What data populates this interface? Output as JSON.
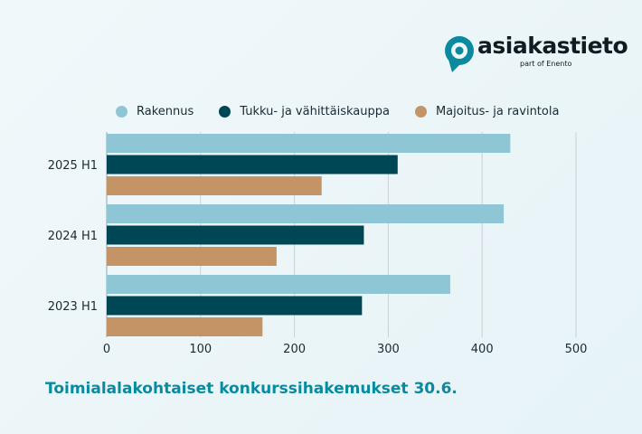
{
  "brand": {
    "name": "asiakastieto",
    "tagline": "part of Enento",
    "colors": {
      "text": "#101b22",
      "accent": "#0a8a9e"
    }
  },
  "caption": "Toimialalakohtaiset konkurssihakemukset 30.6.",
  "chart_data": {
    "type": "bar",
    "orientation": "horizontal",
    "categories": [
      "2025 H1",
      "2024 H1",
      "2023 H1"
    ],
    "series": [
      {
        "name": "Rakennus",
        "color": "#8fc6d6",
        "values": [
          430,
          423,
          366
        ]
      },
      {
        "name": "Tukku- ja vähittäiskauppa",
        "color": "#004755",
        "values": [
          310,
          274,
          272
        ]
      },
      {
        "name": "Majoitus- ja ravintola",
        "color": "#c49366",
        "values": [
          229,
          181,
          166
        ]
      }
    ],
    "xticks": [
      0,
      100,
      200,
      300,
      400,
      500
    ],
    "xlim": [
      0,
      500
    ],
    "grid": "vertical",
    "legend_position": "top"
  }
}
